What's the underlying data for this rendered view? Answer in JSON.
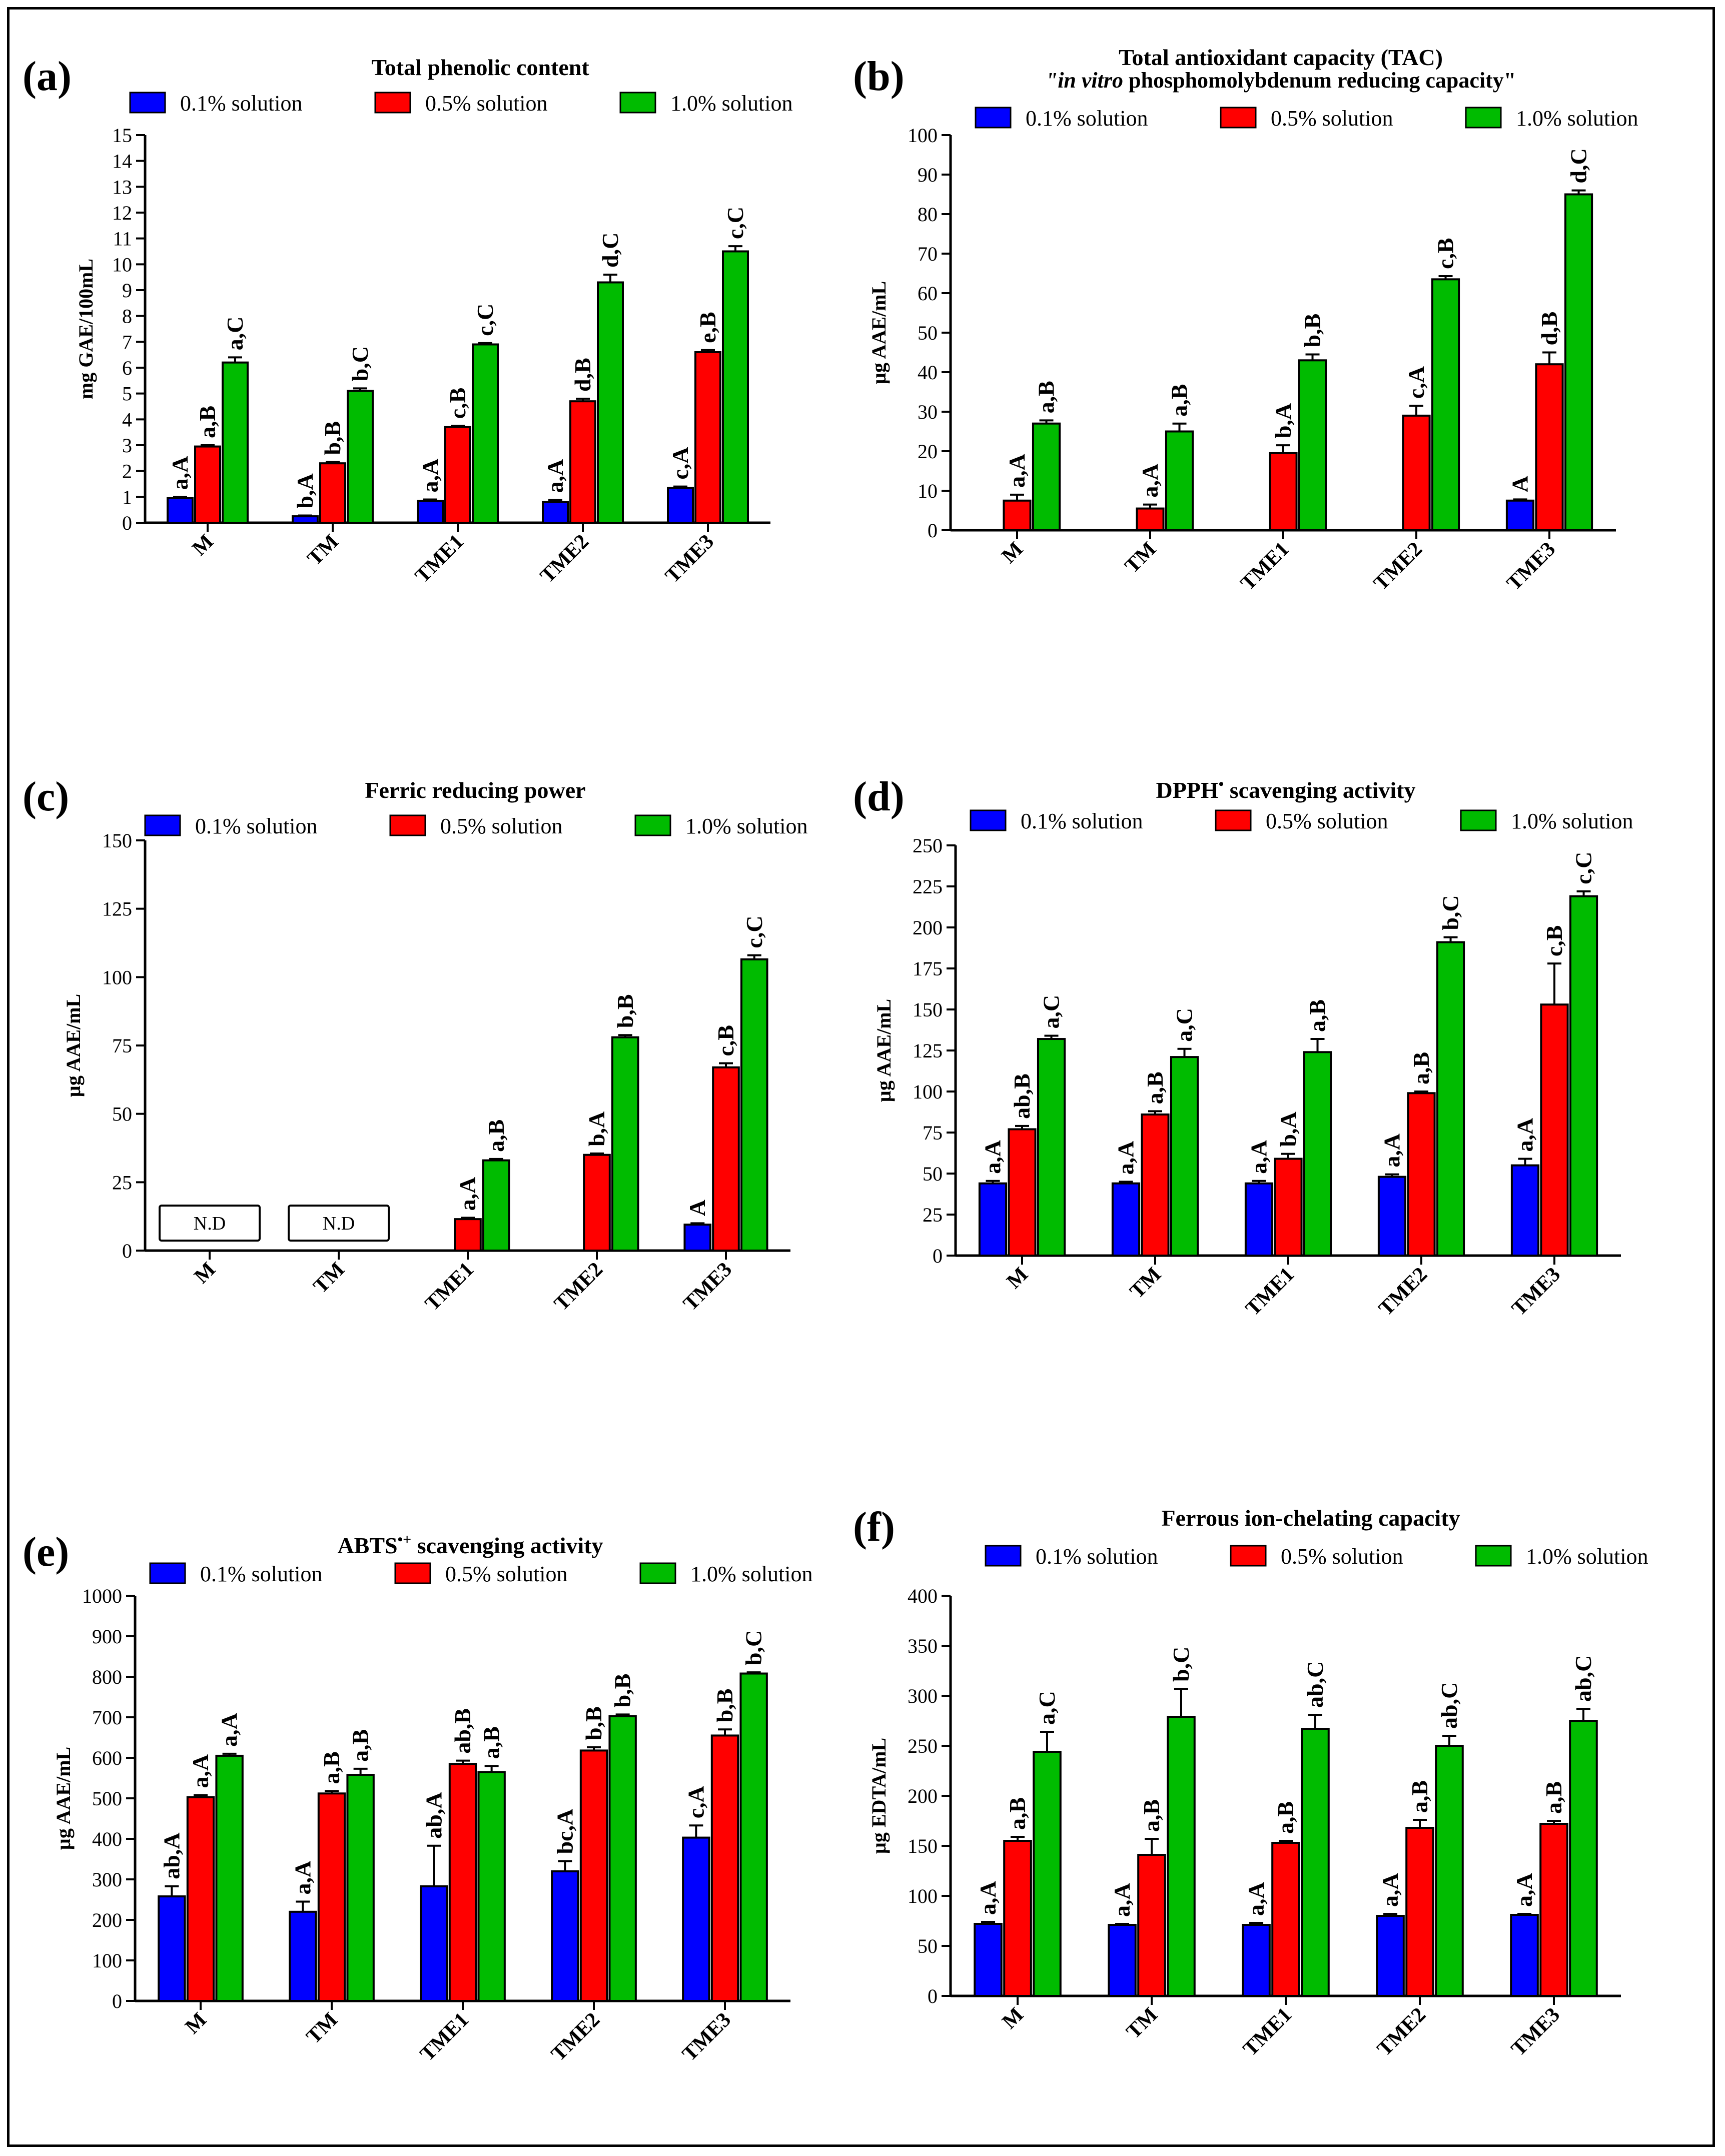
{
  "legend": {
    "series": [
      {
        "name": "0.1% solution",
        "color": "#0000ff"
      },
      {
        "name": "0.5% solution",
        "color": "#ff0000"
      },
      {
        "name": "1.0% solution",
        "color": "#00bb00"
      }
    ]
  },
  "categories": [
    "M",
    "TM",
    "TME1",
    "TME2",
    "TME3"
  ],
  "nd_label": "N.D",
  "chart_data": [
    {
      "id": "a",
      "panel_label": "(a)",
      "type": "bar",
      "title": "Total phenolic content",
      "ylabel": "mg GAE/100mL",
      "xlabel": "",
      "ylim": [
        0,
        15
      ],
      "yticks": [
        0,
        1,
        2,
        3,
        4,
        5,
        6,
        7,
        8,
        9,
        10,
        11,
        12,
        13,
        14,
        15
      ],
      "categories": [
        "M",
        "TM",
        "TME1",
        "TME2",
        "TME3"
      ],
      "series": [
        {
          "name": "0.1% solution",
          "values": [
            0.95,
            0.25,
            0.85,
            0.8,
            1.35
          ],
          "errors": [
            0.05,
            0.03,
            0.05,
            0.08,
            0.05
          ],
          "labels": [
            "a,A",
            "b,A",
            "a,A",
            "a,A",
            "c,A"
          ]
        },
        {
          "name": "0.5% solution",
          "values": [
            2.95,
            2.3,
            3.7,
            4.7,
            6.6
          ],
          "errors": [
            0.05,
            0.05,
            0.05,
            0.1,
            0.08
          ],
          "labels": [
            "a,B",
            "b,B",
            "c,B",
            "d,B",
            "e,B"
          ]
        },
        {
          "name": "1.0% solution",
          "values": [
            6.2,
            5.1,
            6.9,
            9.3,
            10.5
          ],
          "errors": [
            0.2,
            0.1,
            0.05,
            0.3,
            0.2
          ],
          "labels": [
            "a,C",
            "b,C",
            "c,C",
            "d,C",
            "c,C"
          ]
        }
      ]
    },
    {
      "id": "b",
      "panel_label": "(b)",
      "type": "bar",
      "title": "Total antioxidant capacity (TAC)",
      "subtitle_italic": "\"in vitro",
      "subtitle_rest": " phosphomolybdenum reducing capacity\"",
      "ylabel": "µg AAE/mL",
      "xlabel": "",
      "ylim": [
        0,
        100
      ],
      "yticks": [
        0,
        10,
        20,
        30,
        40,
        50,
        60,
        70,
        80,
        90,
        100
      ],
      "categories": [
        "M",
        "TM",
        "TME1",
        "TME2",
        "TME3"
      ],
      "series": [
        {
          "name": "0.1% solution",
          "values": [
            0,
            0,
            0,
            0,
            7.5
          ],
          "errors": [
            0,
            0,
            0,
            0,
            0.3
          ],
          "labels": [
            "",
            "",
            "",
            "",
            "A"
          ]
        },
        {
          "name": "0.5% solution",
          "values": [
            7.5,
            5.5,
            19.5,
            29,
            42
          ],
          "errors": [
            1.5,
            1,
            2,
            2.5,
            3
          ],
          "labels": [
            "a,A",
            "a,A",
            "b,A",
            "c,A",
            "d,B"
          ]
        },
        {
          "name": "1.0% solution",
          "values": [
            27,
            25,
            43,
            63.5,
            85
          ],
          "errors": [
            0.8,
            2,
            1.5,
            0.8,
            1
          ],
          "labels": [
            "a,B",
            "a,B",
            "b,B",
            "c,B",
            "d,C"
          ]
        }
      ]
    },
    {
      "id": "c",
      "panel_label": "(c)",
      "type": "bar",
      "title": "Ferric reducing power",
      "ylabel": "µg AAE/mL",
      "xlabel": "",
      "ylim": [
        0,
        150
      ],
      "yticks": [
        0,
        25,
        50,
        75,
        100,
        125,
        150
      ],
      "categories": [
        "M",
        "TM",
        "TME1",
        "TME2",
        "TME3"
      ],
      "nd_categories": [
        0,
        1
      ],
      "series": [
        {
          "name": "0.1% solution",
          "values": [
            0,
            0,
            0,
            0,
            9.5
          ],
          "errors": [
            0,
            0,
            0,
            0,
            0.5
          ],
          "labels": [
            "",
            "",
            "",
            "",
            "A"
          ]
        },
        {
          "name": "0.5% solution",
          "values": [
            0,
            0,
            11.5,
            35,
            67
          ],
          "errors": [
            0,
            0,
            0.5,
            0.5,
            1.5
          ],
          "labels": [
            "",
            "",
            "a,A",
            "b,A",
            "c,B"
          ]
        },
        {
          "name": "1.0% solution",
          "values": [
            0,
            0,
            33,
            78,
            106.5
          ],
          "errors": [
            0,
            0,
            0.5,
            0.8,
            1.5
          ],
          "labels": [
            "",
            "",
            "a,B",
            "b,B",
            "c,C"
          ]
        }
      ]
    },
    {
      "id": "d",
      "panel_label": "(d)",
      "type": "bar",
      "title": "DPPH",
      "title_sup": "•",
      "title_rest": " scavenging activity",
      "ylabel": "µg AAE/mL",
      "xlabel": "",
      "ylim": [
        0,
        250
      ],
      "yticks": [
        0,
        25,
        50,
        75,
        100,
        125,
        150,
        175,
        200,
        225,
        250
      ],
      "categories": [
        "M",
        "TM",
        "TME1",
        "TME2",
        "TME3"
      ],
      "series": [
        {
          "name": "0.1% solution",
          "values": [
            44,
            44,
            44,
            48,
            55
          ],
          "errors": [
            1.5,
            1,
            1.5,
            1.5,
            4
          ],
          "labels": [
            "a,A",
            "a,A",
            "a,A",
            "a,A",
            "a,A"
          ]
        },
        {
          "name": "0.5% solution",
          "values": [
            77,
            86,
            59,
            99,
            153
          ],
          "errors": [
            2,
            2,
            3,
            1,
            25
          ],
          "labels": [
            "ab,B",
            "a,B",
            "b,A",
            "a,B",
            "c,B"
          ]
        },
        {
          "name": "1.0% solution",
          "values": [
            132,
            121,
            124,
            191,
            219
          ],
          "errors": [
            2,
            5,
            8,
            3,
            3
          ],
          "labels": [
            "a,C",
            "a,C",
            "a,B",
            "b,C",
            "c,C"
          ]
        }
      ]
    },
    {
      "id": "e",
      "panel_label": "(e)",
      "type": "bar",
      "title": "ABTS",
      "title_sup": "•+",
      "title_rest": " scavenging activity",
      "ylabel": "µg AAE/mL",
      "xlabel": "",
      "ylim": [
        0,
        1000
      ],
      "yticks": [
        0,
        100,
        200,
        300,
        400,
        500,
        600,
        700,
        800,
        900,
        1000
      ],
      "categories": [
        "M",
        "TM",
        "TME1",
        "TME2",
        "TME3"
      ],
      "series": [
        {
          "name": "0.1% solution",
          "values": [
            258,
            220,
            283,
            320,
            403
          ],
          "errors": [
            25,
            25,
            100,
            25,
            30
          ],
          "labels": [
            "ab,A",
            "a,A",
            "ab,A",
            "bc,A",
            "c,A"
          ]
        },
        {
          "name": "0.5% solution",
          "values": [
            503,
            512,
            585,
            618,
            655
          ],
          "errors": [
            5,
            6,
            8,
            8,
            15
          ],
          "labels": [
            "a,A",
            "a,B",
            "ab,B",
            "b,B",
            "b,B"
          ]
        },
        {
          "name": "1.0% solution",
          "values": [
            605,
            558,
            565,
            703,
            808
          ],
          "errors": [
            5,
            15,
            15,
            4,
            3
          ],
          "labels": [
            "a,A",
            "a,B",
            "a,B",
            "b,B",
            "b,C"
          ]
        }
      ]
    },
    {
      "id": "f",
      "panel_label": "(f)",
      "type": "bar",
      "title": "Ferrous ion-chelating capacity",
      "ylabel": "µg EDTA/mL",
      "xlabel": "",
      "ylim": [
        0,
        400
      ],
      "yticks": [
        0,
        50,
        100,
        150,
        200,
        250,
        300,
        350,
        400
      ],
      "categories": [
        "M",
        "TM",
        "TME1",
        "TME2",
        "TME3"
      ],
      "series": [
        {
          "name": "0.1% solution",
          "values": [
            72,
            71,
            71,
            80,
            81
          ],
          "errors": [
            2,
            1,
            2,
            2,
            1
          ],
          "labels": [
            "a,A",
            "a,A",
            "a,A",
            "a,A",
            "a,A"
          ]
        },
        {
          "name": "0.5% solution",
          "values": [
            155,
            141,
            153,
            168,
            172
          ],
          "errors": [
            4,
            16,
            2,
            8,
            3
          ],
          "labels": [
            "a,B",
            "a,B",
            "a,B",
            "a,B",
            "a,B"
          ]
        },
        {
          "name": "1.0% solution",
          "values": [
            244,
            279,
            267,
            250,
            275
          ],
          "errors": [
            20,
            28,
            14,
            10,
            12
          ],
          "labels": [
            "a,C",
            "b,C",
            "ab,C",
            "ab,C",
            "ab,C"
          ]
        }
      ]
    }
  ]
}
